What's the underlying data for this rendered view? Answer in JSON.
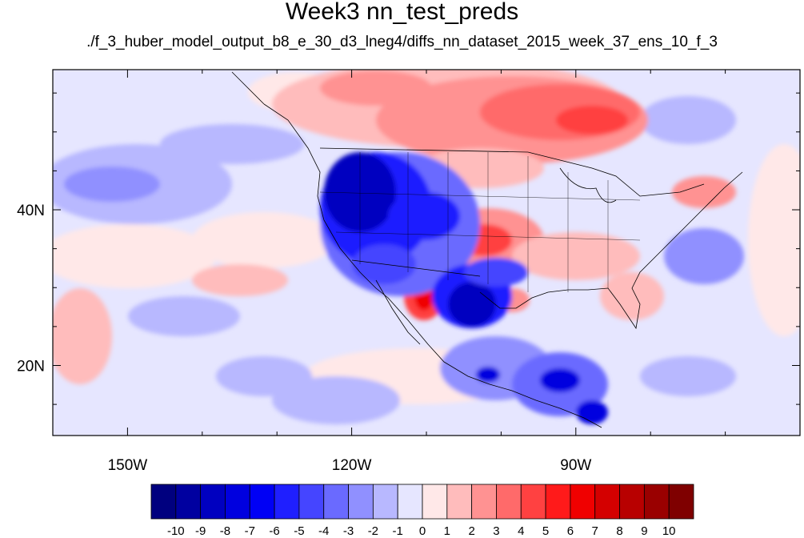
{
  "title": "Week3 nn_test_preds",
  "subtitle": "./f_3_huber_model_output_b8_e_30_d3_lneg4/diffs_nn_dataset_2015_week_37_ens_10_f_3",
  "map": {
    "lon_range": [
      -160,
      -60
    ],
    "lat_range": [
      11,
      58
    ],
    "lon_ticks": [
      {
        "value": -150,
        "label": "150W"
      },
      {
        "value": -120,
        "label": "120W"
      },
      {
        "value": -90,
        "label": "90W"
      }
    ],
    "lat_ticks": [
      {
        "value": 40,
        "label": "40N"
      },
      {
        "value": 20,
        "label": "20N"
      }
    ]
  },
  "colorbar": {
    "colors": [
      "#00007f",
      "#0000a0",
      "#0000c0",
      "#0000df",
      "#0000f5",
      "#1f1fff",
      "#4545ff",
      "#6a6aff",
      "#9090ff",
      "#b8b8ff",
      "#e6e6ff",
      "#ffe8e8",
      "#ffbcbc",
      "#ff9292",
      "#ff6a6a",
      "#ff4141",
      "#ff1a1a",
      "#f00000",
      "#d40000",
      "#b80000",
      "#9a0000",
      "#7f0000"
    ],
    "labels": [
      "-10",
      "-9",
      "-8",
      "-7",
      "-6",
      "-5",
      "-4",
      "-3",
      "-2",
      "-1",
      "0",
      "1",
      "2",
      "3",
      "4",
      "5",
      "6",
      "7",
      "8",
      "9",
      "10"
    ]
  }
}
